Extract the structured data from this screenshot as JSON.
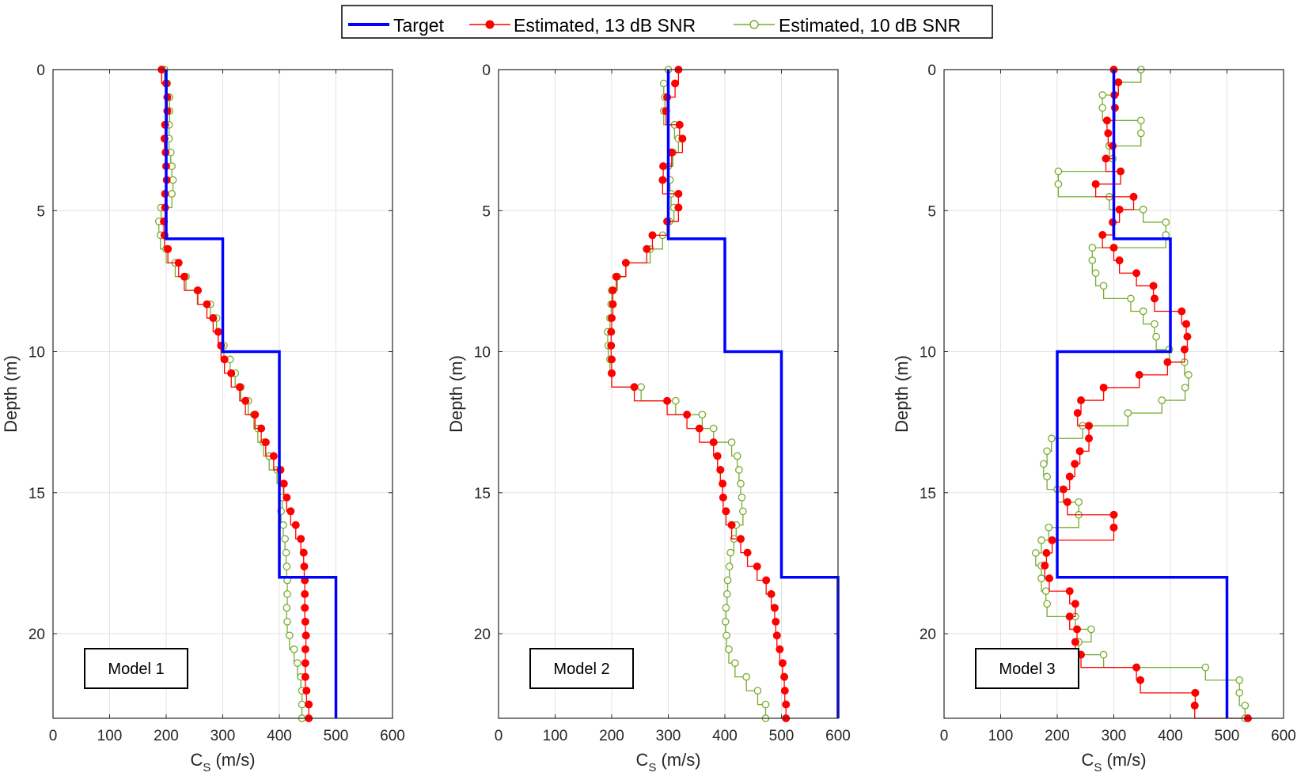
{
  "legend": {
    "entries": [
      {
        "label": "Target",
        "color": "#0000ff",
        "style": "line"
      },
      {
        "label": "Estimated, 13 dB SNR",
        "color": "#ff0000",
        "style": "line-filled-dot"
      },
      {
        "label": "Estimated, 10 dB SNR",
        "color": "#77ac30",
        "style": "line-open-circle"
      }
    ],
    "placement": "top-center"
  },
  "chart_data": [
    {
      "type": "line",
      "model_label": "Model 1",
      "xlabel": "C",
      "xlabel_sub": "S",
      "xlabel_unit": " (m/s)",
      "ylabel": "Depth (m)",
      "xlim": [
        0,
        600
      ],
      "ylim": [
        0,
        23
      ],
      "y_reversed": true,
      "grid": true,
      "xticks": [
        0,
        100,
        200,
        300,
        400,
        500,
        600
      ],
      "yticks": [
        0,
        5,
        10,
        15,
        20
      ],
      "target": {
        "depths": [
          0,
          6,
          10,
          18,
          23
        ],
        "values": [
          200,
          300,
          400,
          500
        ]
      },
      "estimates": [
        {
          "name": "Estimated, 13 dB SNR",
          "values": [
            192,
            200,
            202,
            202,
            198,
            197,
            199,
            200,
            201,
            198,
            198,
            196,
            197,
            203,
            222,
            232,
            256,
            272,
            283,
            292,
            297,
            303,
            315,
            330,
            340,
            357,
            368,
            376,
            390,
            402,
            408,
            413,
            420,
            429,
            438,
            443,
            444,
            445,
            445,
            445,
            446,
            447,
            446,
            446,
            446,
            448,
            452,
            452
          ]
        },
        {
          "name": "Estimated, 10 dB SNR",
          "values": [
            197,
            202,
            206,
            206,
            205,
            205,
            208,
            210,
            212,
            210,
            191,
            187,
            190,
            200,
            216,
            235,
            255,
            278,
            289,
            292,
            302,
            313,
            322,
            332,
            345,
            355,
            362,
            372,
            382,
            396,
            407,
            405,
            403,
            407,
            410,
            412,
            413,
            414,
            414,
            413,
            414,
            418,
            426,
            432,
            438,
            440,
            440,
            440
          ]
        }
      ]
    },
    {
      "type": "line",
      "model_label": "Model 2",
      "xlabel": "C",
      "xlabel_sub": "S",
      "xlabel_unit": " (m/s)",
      "ylabel": "Depth (m)",
      "xlim": [
        0,
        600
      ],
      "ylim": [
        0,
        23
      ],
      "y_reversed": true,
      "grid": true,
      "xticks": [
        0,
        100,
        200,
        300,
        400,
        500,
        600
      ],
      "yticks": [
        0,
        5,
        10,
        15,
        20
      ],
      "target": {
        "depths": [
          0,
          6,
          10,
          18,
          23
        ],
        "values": [
          300,
          400,
          500,
          600
        ]
      },
      "estimates": [
        {
          "name": "Estimated, 13 dB SNR",
          "values": [
            318,
            312,
            298,
            296,
            320,
            325,
            306,
            291,
            290,
            318,
            318,
            298,
            272,
            262,
            225,
            208,
            202,
            202,
            200,
            199,
            199,
            200,
            200,
            240,
            298,
            333,
            355,
            380,
            387,
            392,
            396,
            397,
            402,
            412,
            428,
            440,
            457,
            473,
            482,
            488,
            490,
            492,
            497,
            502,
            505,
            506,
            508,
            508
          ]
        },
        {
          "name": "Estimated, 10 dB SNR",
          "values": [
            300,
            292,
            294,
            292,
            311,
            318,
            308,
            300,
            303,
            305,
            310,
            302,
            290,
            268,
            225,
            210,
            200,
            199,
            197,
            193,
            194,
            197,
            200,
            252,
            313,
            360,
            380,
            412,
            422,
            425,
            428,
            430,
            432,
            420,
            416,
            410,
            408,
            405,
            404,
            402,
            401,
            403,
            407,
            418,
            438,
            458,
            472,
            472
          ]
        }
      ]
    },
    {
      "type": "line",
      "model_label": "Model 3",
      "xlabel": "C",
      "xlabel_sub": "S",
      "xlabel_unit": " (m/s)",
      "ylabel": "Depth (m)",
      "xlim": [
        0,
        600
      ],
      "ylim": [
        0,
        23
      ],
      "y_reversed": true,
      "grid": true,
      "xticks": [
        0,
        100,
        200,
        300,
        400,
        500,
        600
      ],
      "yticks": [
        0,
        5,
        10,
        15,
        20
      ],
      "target": {
        "depths": [
          0,
          6,
          10,
          18,
          23
        ],
        "values": [
          300,
          400,
          200,
          500
        ]
      },
      "estimates": [
        {
          "name": "Estimated, 13 dB SNR",
          "values": [
            300,
            308,
            301,
            302,
            288,
            290,
            298,
            286,
            312,
            268,
            335,
            310,
            298,
            280,
            300,
            310,
            340,
            370,
            372,
            420,
            428,
            430,
            425,
            395,
            345,
            282,
            242,
            236,
            256,
            256,
            240,
            231,
            222,
            211,
            218,
            300,
            300,
            191,
            181,
            178,
            186,
            222,
            232,
            222,
            235,
            232,
            242,
            340,
            347,
            444,
            443,
            537
          ]
        },
        {
          "name": "Estimated, 10 dB SNR",
          "values": [
            348,
            308,
            280,
            280,
            348,
            348,
            292,
            298,
            202,
            202,
            292,
            352,
            392,
            392,
            262,
            262,
            268,
            282,
            330,
            352,
            372,
            375,
            398,
            425,
            432,
            426,
            385,
            325,
            245,
            190,
            182,
            176,
            182,
            200,
            238,
            238,
            185,
            172,
            162,
            172,
            172,
            180,
            182,
            232,
            260,
            238,
            282,
            462,
            522,
            522,
            532,
            532
          ]
        }
      ]
    }
  ]
}
